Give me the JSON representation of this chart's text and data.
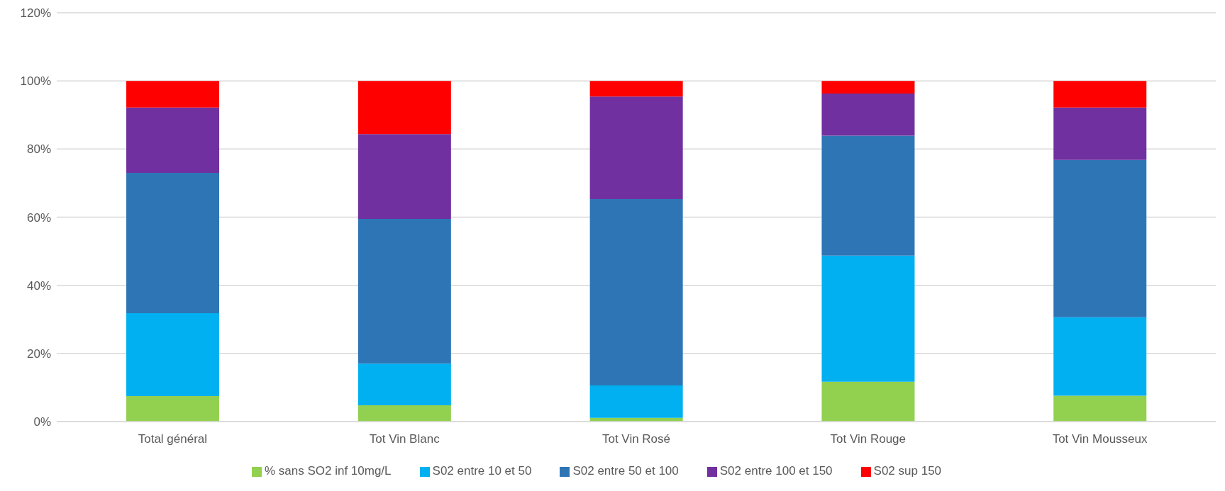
{
  "chart_data": {
    "type": "bar",
    "stacked": true,
    "categories": [
      "Total général",
      "Tot Vin Blanc",
      "Tot Vin Rosé",
      "Tot Vin Rouge",
      "Tot Vin Mousseux"
    ],
    "series": [
      {
        "name": "% sans SO2 inf 10mg/L",
        "color": "#92d050",
        "values": [
          7.5,
          4.8,
          1.1,
          11.7,
          7.6
        ]
      },
      {
        "name": "S02 entre 10 et 50",
        "color": "#00b0f0",
        "values": [
          24.3,
          12.2,
          9.5,
          37,
          23
        ]
      },
      {
        "name": "S02 entre 50 et 100",
        "color": "#2e75b6",
        "values": [
          41.2,
          42.5,
          54.7,
          35.2,
          46.2
        ]
      },
      {
        "name": "S02 entre 100 et 150",
        "color": "#7030a0",
        "values": [
          19.2,
          24.9,
          30.1,
          12.4,
          15.4
        ]
      },
      {
        "name": "S02 sup 150",
        "color": "#ff0000",
        "values": [
          7.8,
          15.6,
          4.6,
          3.7,
          7.8
        ]
      }
    ],
    "ylim": [
      0,
      120
    ],
    "yticks": [
      {
        "value": 0,
        "label": "0%"
      },
      {
        "value": 20,
        "label": "20%"
      },
      {
        "value": 40,
        "label": "40%"
      },
      {
        "value": 60,
        "label": "60%"
      },
      {
        "value": 80,
        "label": "80%"
      },
      {
        "value": 100,
        "label": "100%"
      },
      {
        "value": 120,
        "label": "120%"
      }
    ],
    "grid": "y",
    "legend": "bottom"
  }
}
